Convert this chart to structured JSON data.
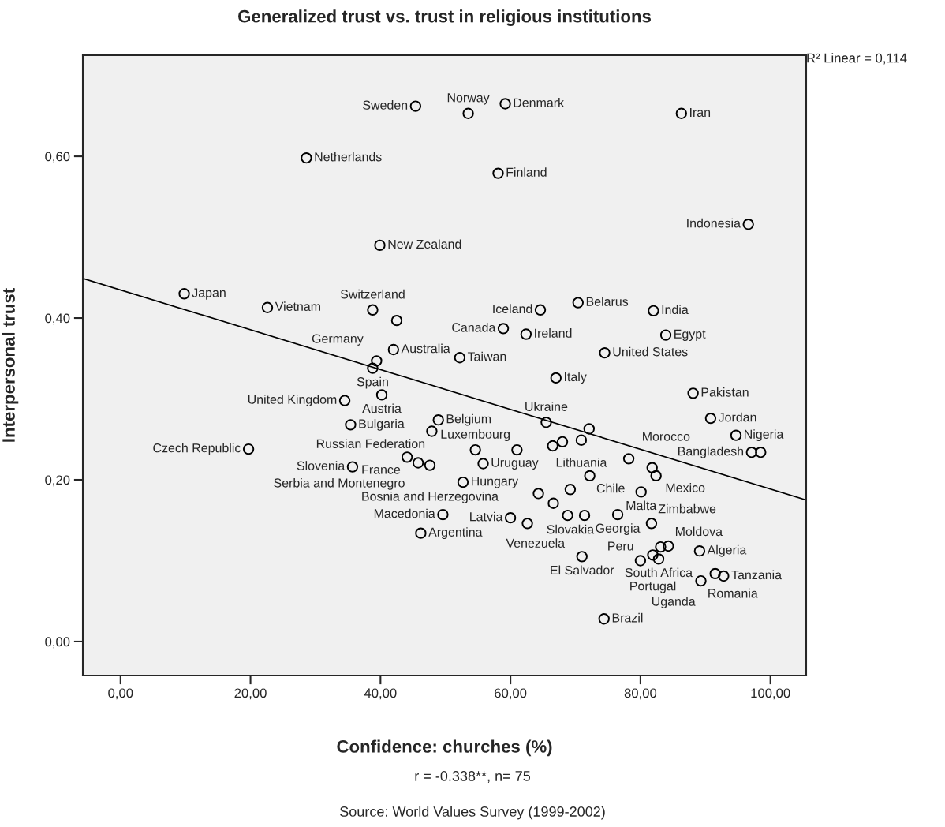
{
  "chart_data": {
    "type": "scatter",
    "title": "Generalized trust vs. trust in religious institutions",
    "xlabel": "Confidence: churches (%)",
    "ylabel": "Interpersonal trust",
    "xlim": [
      -5.8,
      105.5
    ],
    "ylim": [
      -0.042,
      0.725
    ],
    "xticks": [
      {
        "value": 0,
        "label": "0,00"
      },
      {
        "value": 20,
        "label": "20,00"
      },
      {
        "value": 40,
        "label": "40,00"
      },
      {
        "value": 60,
        "label": "60,00"
      },
      {
        "value": 80,
        "label": "80,00"
      },
      {
        "value": 100,
        "label": "100,00"
      }
    ],
    "yticks": [
      {
        "value": 0,
        "label": "0,00"
      },
      {
        "value": 0.2,
        "label": "0,20"
      },
      {
        "value": 0.4,
        "label": "0,40"
      },
      {
        "value": 0.6,
        "label": "0,60"
      }
    ],
    "grid": false,
    "series": [
      {
        "color": "#000000",
        "marker": "circle",
        "x": [
          9.8,
          22.6,
          28.6,
          38.8,
          42.5,
          42.0,
          39.4,
          38.8,
          40.2,
          34.5,
          35.4,
          48.9,
          47.9,
          19.7,
          35.7,
          44.1,
          45.8,
          47.6,
          49.6,
          46.2,
          64.6,
          58.9,
          62.4,
          52.2,
          67.0,
          70.4,
          82.0,
          83.9,
          74.5,
          88.1,
          90.8,
          94.7,
          97.1,
          98.5,
          65.5,
          72.1,
          66.5,
          68.0,
          70.9,
          54.6,
          61.0,
          55.8,
          78.2,
          72.2,
          81.8,
          82.4,
          52.7,
          64.3,
          66.6,
          69.2,
          80.1,
          60.0,
          62.6,
          68.8,
          71.4,
          76.5,
          81.7,
          83.1,
          84.3,
          89.1,
          71.0,
          80.0,
          81.9,
          82.8,
          89.3,
          91.5,
          92.8,
          74.4,
          45.4,
          53.5,
          59.2,
          58.1,
          86.3,
          96.6,
          39.9
        ],
        "values": [
          0.43,
          0.413,
          0.598,
          0.41,
          0.397,
          0.361,
          0.347,
          0.338,
          0.305,
          0.298,
          0.268,
          0.274,
          0.26,
          0.238,
          0.216,
          0.228,
          0.221,
          0.218,
          0.157,
          0.134,
          0.41,
          0.387,
          0.38,
          0.351,
          0.326,
          0.419,
          0.409,
          0.379,
          0.357,
          0.307,
          0.276,
          0.255,
          0.234,
          0.234,
          0.271,
          0.263,
          0.242,
          0.247,
          0.249,
          0.237,
          0.237,
          0.22,
          0.226,
          0.205,
          0.215,
          0.205,
          0.197,
          0.183,
          0.171,
          0.188,
          0.185,
          0.153,
          0.146,
          0.156,
          0.156,
          0.157,
          0.146,
          0.117,
          0.118,
          0.112,
          0.105,
          0.1,
          0.107,
          0.102,
          0.075,
          0.084,
          0.081,
          0.028,
          0.662,
          0.653,
          0.665,
          0.579,
          0.653,
          0.516,
          0.49
        ]
      },
      {
        "type": "line",
        "color": "#000000",
        "line_style": "solid",
        "x": [
          -5.8,
          105.5
        ],
        "values": [
          0.449,
          0.175
        ]
      }
    ],
    "annotations": [
      "R² Linear = 0,114",
      "r = -0.338**, n= 75",
      "Source: World Values Survey (1999-2002)",
      {
        "text": "Sweden",
        "x": 45.4,
        "y": 0.662
      },
      {
        "text": "Norway",
        "x": 53.5,
        "y": 0.653
      },
      {
        "text": "Denmark",
        "x": 59.2,
        "y": 0.665
      },
      {
        "text": "Netherlands",
        "x": 28.6,
        "y": 0.598
      },
      {
        "text": "Finland",
        "x": 58.1,
        "y": 0.579
      },
      {
        "text": "Iran",
        "x": 86.3,
        "y": 0.653
      },
      {
        "text": "Indonesia",
        "x": 96.6,
        "y": 0.516
      },
      {
        "text": "New Zealand",
        "x": 39.9,
        "y": 0.49
      },
      {
        "text": "Japan",
        "x": 9.8,
        "y": 0.43
      },
      {
        "text": "Vietnam",
        "x": 22.6,
        "y": 0.413
      },
      {
        "text": "Switzerland",
        "x": 38.8,
        "y": 0.41
      },
      {
        "text": "Iceland",
        "x": 64.6,
        "y": 0.41
      },
      {
        "text": "Belarus",
        "x": 70.4,
        "y": 0.419
      },
      {
        "text": "India",
        "x": 82.0,
        "y": 0.409
      },
      {
        "text": "Egypt",
        "x": 83.9,
        "y": 0.379
      },
      {
        "text": "Canada",
        "x": 58.9,
        "y": 0.387
      },
      {
        "text": "Australia",
        "x": 42.0,
        "y": 0.361
      },
      {
        "text": "Taiwan",
        "x": 52.2,
        "y": 0.351
      },
      {
        "text": "United States",
        "x": 74.5,
        "y": 0.357
      },
      {
        "text": "Germany",
        "x": 39.4,
        "y": 0.347
      },
      {
        "text": "Spain",
        "x": 38.8,
        "y": 0.338
      },
      {
        "text": "Ireland",
        "x": 62.4,
        "y": 0.38
      },
      {
        "text": "Italy",
        "x": 67.0,
        "y": 0.326
      },
      {
        "text": "Pakistan",
        "x": 88.1,
        "y": 0.307
      },
      {
        "text": "Austria",
        "x": 40.2,
        "y": 0.305
      },
      {
        "text": "Jordan",
        "x": 90.8,
        "y": 0.276
      },
      {
        "text": "United Kingdom",
        "x": 34.5,
        "y": 0.298
      },
      {
        "text": "Belgium",
        "x": 48.9,
        "y": 0.274
      },
      {
        "text": "Luxembourg",
        "x": 54.6,
        "y": 0.237
      },
      {
        "text": "Ukraine",
        "x": 65.5,
        "y": 0.271
      },
      {
        "text": "Nigeria",
        "x": 94.7,
        "y": 0.255
      },
      {
        "text": "Russian Federation",
        "x": 47.9,
        "y": 0.26
      },
      {
        "text": "Bulgaria",
        "x": 35.4,
        "y": 0.268
      },
      {
        "text": "Lithuania",
        "x": 70.9,
        "y": 0.249
      },
      {
        "text": "Morocco",
        "x": 78.2,
        "y": 0.226
      },
      {
        "text": "Czech Republic",
        "x": 19.7,
        "y": 0.238
      },
      {
        "text": "Slovenia",
        "x": 35.7,
        "y": 0.216
      },
      {
        "text": "Uruguay",
        "x": 55.8,
        "y": 0.22
      },
      {
        "text": "Mexico",
        "x": 81.8,
        "y": 0.215
      },
      {
        "text": "Bangladesh",
        "x": 97.1,
        "y": 0.234
      },
      {
        "text": "Chile",
        "x": 72.2,
        "y": 0.205
      },
      {
        "text": "France",
        "x": 44.1,
        "y": 0.228
      },
      {
        "text": "Serbia and Montenegro",
        "x": 45.8,
        "y": 0.221
      },
      {
        "text": "Hungary",
        "x": 52.7,
        "y": 0.197
      },
      {
        "text": "Malta",
        "x": 80.1,
        "y": 0.185
      },
      {
        "text": "Latvia",
        "x": 60.0,
        "y": 0.153
      },
      {
        "text": "Slovakia",
        "x": 69.2,
        "y": 0.188
      },
      {
        "text": "Georgia",
        "x": 76.5,
        "y": 0.157
      },
      {
        "text": "Moldova",
        "x": 84.3,
        "y": 0.118
      },
      {
        "text": "Bosnia and Herzegovina",
        "x": 47.6,
        "y": 0.218
      },
      {
        "text": "Argentina",
        "x": 46.2,
        "y": 0.134
      },
      {
        "text": "Venezuela",
        "x": 71.4,
        "y": 0.156
      },
      {
        "text": "Zimbabwe",
        "x": 81.7,
        "y": 0.146
      },
      {
        "text": "Algeria",
        "x": 89.1,
        "y": 0.112
      },
      {
        "text": "Macedonia",
        "x": 49.6,
        "y": 0.157
      },
      {
        "text": "El Salvador",
        "x": 71.0,
        "y": 0.105
      },
      {
        "text": "South Africa",
        "x": 82.8,
        "y": 0.102
      },
      {
        "text": "Peru",
        "x": 80.0,
        "y": 0.1
      },
      {
        "text": "Portugal",
        "x": 81.9,
        "y": 0.107
      },
      {
        "text": "Romania",
        "x": 89.3,
        "y": 0.075
      },
      {
        "text": "Tanzania",
        "x": 92.8,
        "y": 0.081
      },
      {
        "text": "Brazil",
        "x": 74.4,
        "y": 0.028
      },
      {
        "text": "Uganda",
        "x": 91.5,
        "y": 0.084
      }
    ]
  }
}
